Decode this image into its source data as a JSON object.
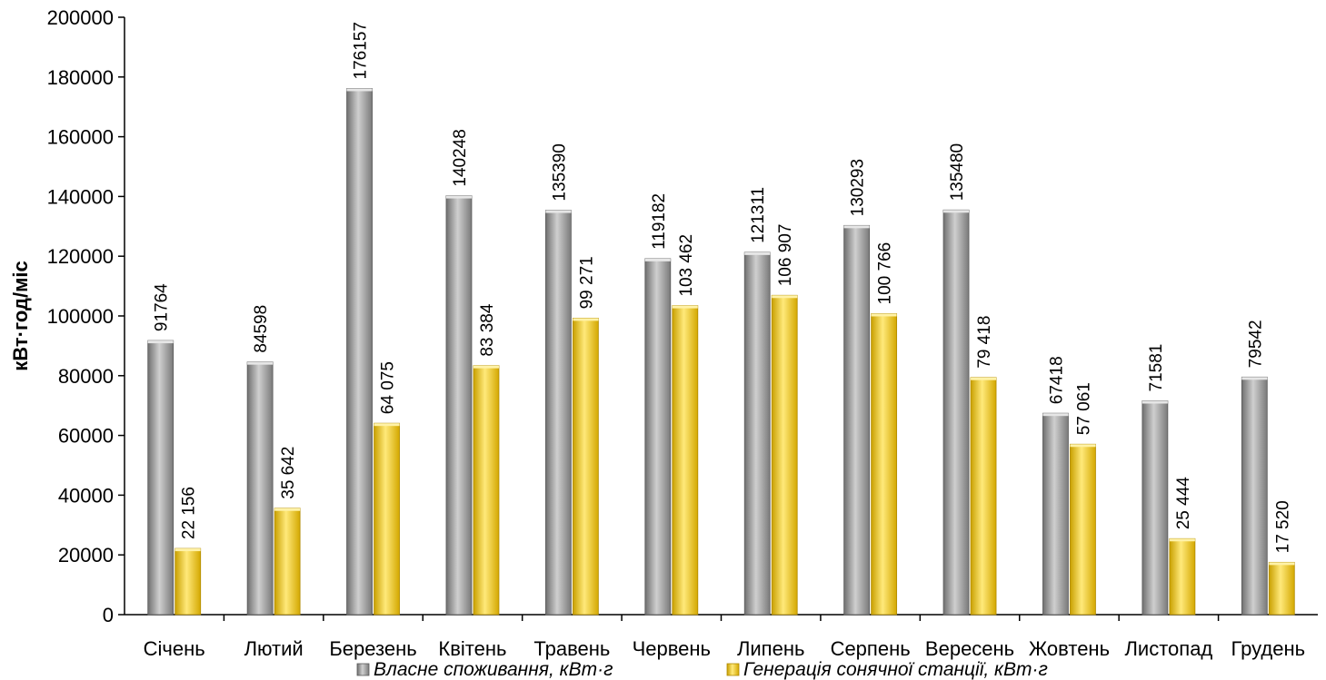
{
  "chart_data": {
    "type": "bar",
    "ylabel": "кВт·год/міс",
    "xlabel": "",
    "ylim": [
      0,
      200000
    ],
    "yticks": [
      0,
      20000,
      40000,
      60000,
      80000,
      100000,
      120000,
      140000,
      160000,
      180000,
      200000
    ],
    "ytick_labels": [
      "0",
      "20000",
      "40000",
      "60000",
      "80000",
      "100000",
      "120000",
      "140000",
      "160000",
      "180000",
      "200000"
    ],
    "grid": false,
    "legend_position": "bottom",
    "categories": [
      "Січень",
      "Лютий",
      "Березень",
      "Квітень",
      "Травень",
      "Червень",
      "Липень",
      "Серпень",
      "Вересень",
      "Жовтень",
      "Листопад",
      "Грудень"
    ],
    "series": [
      {
        "name": "Власне споживання, кВт·г",
        "color": "#9e9e9e",
        "values": [
          91764,
          84598,
          176157,
          140248,
          135390,
          119182,
          121311,
          130293,
          135480,
          67418,
          71581,
          79542
        ],
        "labels": [
          "91764",
          "84598",
          "176157",
          "140248",
          "135390",
          "119182",
          "121311",
          "130293",
          "135480",
          "67418",
          "71581",
          "79542"
        ]
      },
      {
        "name": "Генерація сонячної станції, кВт·г",
        "color": "#f2c91e",
        "values": [
          22156,
          35642,
          64075,
          83384,
          99271,
          103462,
          106907,
          100766,
          79418,
          57061,
          25444,
          17520
        ],
        "labels": [
          "22 156",
          "35 642",
          "64 075",
          "83 384",
          "99 271",
          "103 462",
          "106 907",
          "100 766",
          "79 418",
          "57 061",
          "25 444",
          "17 520"
        ]
      }
    ]
  }
}
